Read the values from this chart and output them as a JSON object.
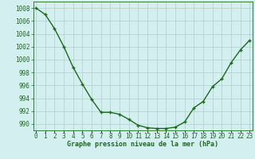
{
  "x": [
    0,
    1,
    2,
    3,
    4,
    5,
    6,
    7,
    8,
    9,
    10,
    11,
    12,
    13,
    14,
    15,
    16,
    17,
    18,
    19,
    20,
    21,
    22,
    23
  ],
  "y": [
    1008.0,
    1007.0,
    1004.8,
    1002.0,
    998.8,
    996.2,
    993.8,
    991.8,
    991.8,
    991.5,
    990.7,
    989.8,
    989.4,
    989.3,
    989.3,
    989.5,
    990.3,
    992.5,
    993.5,
    995.8,
    997.0,
    999.5,
    1001.5,
    1003.0
  ],
  "line_color": "#1a6b1a",
  "marker": "+",
  "marker_size": 3,
  "background_color": "#d4efef",
  "grid_color": "#b0cece",
  "ylim": [
    989,
    1009
  ],
  "yticks": [
    990,
    992,
    994,
    996,
    998,
    1000,
    1002,
    1004,
    1006,
    1008
  ],
  "xtick_labels": [
    "0",
    "1",
    "2",
    "3",
    "4",
    "5",
    "6",
    "7",
    "8",
    "9",
    "10",
    "11",
    "12",
    "13",
    "14",
    "15",
    "16",
    "17",
    "18",
    "19",
    "20",
    "21",
    "22",
    "23"
  ],
  "xlabel": "Graphe pression niveau de la mer (hPa)",
  "xlabel_fontsize": 6.0,
  "tick_fontsize": 5.5,
  "line_width": 1.0
}
